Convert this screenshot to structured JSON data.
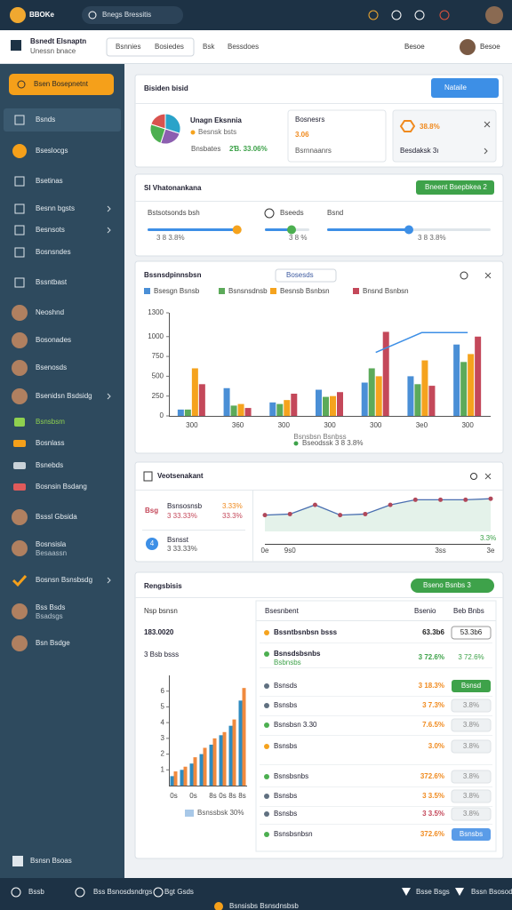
{
  "topbar": {
    "logo": "BBOKe",
    "search": "Bnegs Bressitis"
  },
  "subbar": {
    "title": "Bsnedt Elsnaptn",
    "subtitle": "Unessn bnace",
    "tabs": [
      "Bsnnies",
      "Bosiedes",
      "Bsk",
      "Bessdoes"
    ],
    "right": "Besoe",
    "user": "Besoe"
  },
  "sidebar": {
    "button": "Bsen Bosepnetnt",
    "items": [
      {
        "label": "Bsnds"
      },
      {
        "label": "Bseslocgs"
      },
      {
        "label": "Bsetinas"
      },
      {
        "label": "Besnn bgsts"
      },
      {
        "label": "Besnsots"
      },
      {
        "label": "Bosnsndes"
      },
      {
        "label": "Bssntbast"
      },
      {
        "label": "Neoshnd"
      },
      {
        "label": "Bosonades"
      },
      {
        "label": "Bsenosds"
      },
      {
        "label": "Bsenidsn Bsdsidg"
      },
      {
        "label": "Bsnsbsm"
      },
      {
        "label": "Bosnlass"
      },
      {
        "label": "Bsnebds"
      },
      {
        "label": "Bosnsin Bsdang"
      },
      {
        "label": "Bsssl Gbsida"
      },
      {
        "label": "Bosnsisla",
        "sub": "Besaassn"
      },
      {
        "label": "Bosnsn Bsnsbsdg"
      },
      {
        "label": "Bss Bsds",
        "sub": "Bsadsgs"
      },
      {
        "label": "Bsn Bsdge"
      }
    ],
    "footer": "Bsnsn Bsoas"
  },
  "summary": {
    "title": "Bisiden bisid",
    "button": "Nataile",
    "name": "Unagn Eksnnia",
    "name_sub": "Besnsk bsts",
    "stat": "2Ɓ. 33.06%",
    "stat_label": "Bnsbates",
    "pie": {
      "values": [
        30,
        25,
        25,
        20
      ],
      "colors": [
        "#2aa3c9",
        "#8c5fb0",
        "#4caf50",
        "#d9534f"
      ]
    },
    "box1": {
      "label": "Bosnesrs",
      "value": "3.06",
      "sub": "Bsrnnaanrs"
    },
    "box2": {
      "value": "38.8%",
      "label": "Besdaksk 3ı"
    }
  },
  "sliders": {
    "title": "Sl Vhatonankana",
    "button": "Bneent Bsepbkea 2",
    "items": [
      {
        "label": "Bstsotsonds bsh",
        "value": "3 8 3.8%",
        "position": 0.95,
        "color": "#f5a31e"
      },
      {
        "label": "Bseeds",
        "value": "3 8 %",
        "position": 0.6,
        "color": "#4caf50"
      },
      {
        "label": "Bsnd",
        "value": "3 8 3.8%",
        "position": 0.5,
        "color": "#3d8fe6"
      }
    ]
  },
  "bar_chart": {
    "type": "bar",
    "title": "Bssnsdpinnsbsn",
    "selector": "Bosesds",
    "categories": [
      "300",
      "360",
      "300",
      "300",
      "300",
      "3e0",
      "300"
    ],
    "series": [
      {
        "name": "Bsesgn Bsnsb",
        "color": "#4a8fd6",
        "values": [
          80,
          350,
          170,
          330,
          420,
          500,
          900
        ]
      },
      {
        "name": "Bsnsnsdnsb",
        "color": "#5caa5a",
        "values": [
          80,
          130,
          150,
          240,
          600,
          400,
          680
        ]
      },
      {
        "name": "Besnsb Bsnbsn",
        "color": "#f5a31e",
        "values": [
          600,
          150,
          200,
          250,
          500,
          700,
          780
        ]
      },
      {
        "name": "Bnsnd Bsnbsn",
        "color": "#c4485a",
        "values": [
          400,
          100,
          280,
          300,
          1060,
          380,
          1000
        ]
      }
    ],
    "trend": [
      null,
      null,
      null,
      null,
      800,
      1050,
      1050
    ],
    "ylim": [
      0,
      1300
    ],
    "yticks": [
      0,
      250,
      500,
      750,
      1000,
      1300
    ],
    "caption": "Bsnsbsn Bsnbss",
    "note": "Bseodssk 3 8 3.8%"
  },
  "line_chart": {
    "type": "line",
    "title": "Veotsenakant",
    "kpis": [
      {
        "icon": "Bsg",
        "label": "Bsnsosnsb",
        "value": "3 33.33%",
        "right1": "3.33%",
        "right2": "33.3%"
      },
      {
        "icon": "4",
        "label": "Bsnsst",
        "value": "3 33.33%"
      }
    ],
    "categories": [
      "0e",
      "9s0",
      null,
      null,
      null,
      null,
      null,
      "3ss",
      null,
      "3e"
    ],
    "values": [
      300,
      305,
      350,
      300,
      305,
      350,
      375,
      375,
      375,
      380
    ],
    "ylim": [
      220,
      420
    ],
    "color": "#b0485a",
    "note": "3.3%"
  },
  "report": {
    "title": "Rengsbisis",
    "button": "Bseno Bsnbs 3",
    "label": "Nsp bsnsn",
    "total": "183.0020",
    "sub": "3 Bsb bsss",
    "chart": {
      "type": "bar",
      "categories": [
        "0s",
        null,
        "0s",
        null,
        "8s",
        "0s",
        "8s",
        "8s"
      ],
      "series": [
        {
          "name": "Bsnssbsk 30%",
          "color": "#2e8bc0",
          "values": [
            0.6,
            1.0,
            1.4,
            2.0,
            2.6,
            3.2,
            3.8,
            5.4
          ]
        },
        {
          "name": null,
          "color": "#f08a3e",
          "values": [
            0.9,
            1.2,
            1.8,
            2.4,
            3.0,
            3.4,
            4.2,
            6.2
          ]
        }
      ],
      "ylim": [
        0,
        7
      ],
      "yticks": [
        1,
        2,
        3,
        4,
        5,
        6
      ]
    },
    "headers": [
      "Bsesnbent",
      "Bsenio",
      "Beb Bnbs"
    ],
    "rows": [
      {
        "icon": "#f5a31e",
        "label": "Bssntbsnbsn bsss",
        "value": "63.3b6",
        "value_color": "#222",
        "badge": "53.3b6",
        "badge_style": "outline"
      },
      {
        "icon": "#4caf50",
        "label": "Bsnsdsbsnbs",
        "sub": "Bsbnsbs",
        "value": "3 72.6%",
        "value_color": "#3ea24a",
        "badge": "3 72.6%",
        "badge_style": "text"
      },
      {
        "icon": "#607080",
        "label": "Bsnsds",
        "value": "3 18.3%",
        "value_color": "#f08a1e",
        "badge": "Bsnsd",
        "badge_style": "green"
      },
      {
        "icon": "#607080",
        "label": "Bsnsbs",
        "value": "3 7.3%",
        "value_color": "#f08a1e",
        "badge": "3.8%",
        "badge_style": "gray"
      },
      {
        "icon": "#4caf50",
        "label": "Bsnsbsn 3.30",
        "value": "7.6.5%",
        "value_color": "#f08a1e",
        "badge": "3.8%",
        "badge_style": "gray"
      },
      {
        "icon": "#f5a31e",
        "label": "Bsnsbs",
        "value": "3.0%",
        "value_color": "#f08a1e",
        "badge": "3.8%",
        "badge_style": "gray"
      },
      {
        "icon": "#4caf50",
        "label": "Bsnsbsnbs",
        "value": "372.6%",
        "value_color": "#f08a1e",
        "badge": "3.8%",
        "badge_style": "gray"
      },
      {
        "icon": "#607080",
        "label": "Bsnsbs",
        "value": "3 3.5%",
        "value_color": "#f08a1e",
        "badge": "3.8%",
        "badge_style": "gray"
      },
      {
        "icon": "#607080",
        "label": "Bsnsbs",
        "value": "3 3.5%",
        "value_color": "#c4485a",
        "badge": "3.8%",
        "badge_style": "gray"
      },
      {
        "icon": "#4caf50",
        "label": "Bsnsbsnbsn",
        "value": "372.6%",
        "value_color": "#f08a1e",
        "badge": "Bsnsbs",
        "badge_style": "blue"
      }
    ]
  },
  "bottombar": {
    "left": [
      "Bssb",
      "Bss Bsnosdsndrgs",
      "Bgt Gsds"
    ],
    "right": [
      "Bsse Bsgs",
      "Bssn Bsosodss"
    ],
    "footer": "Bsnsisbs Bsnsdnsbsb"
  }
}
